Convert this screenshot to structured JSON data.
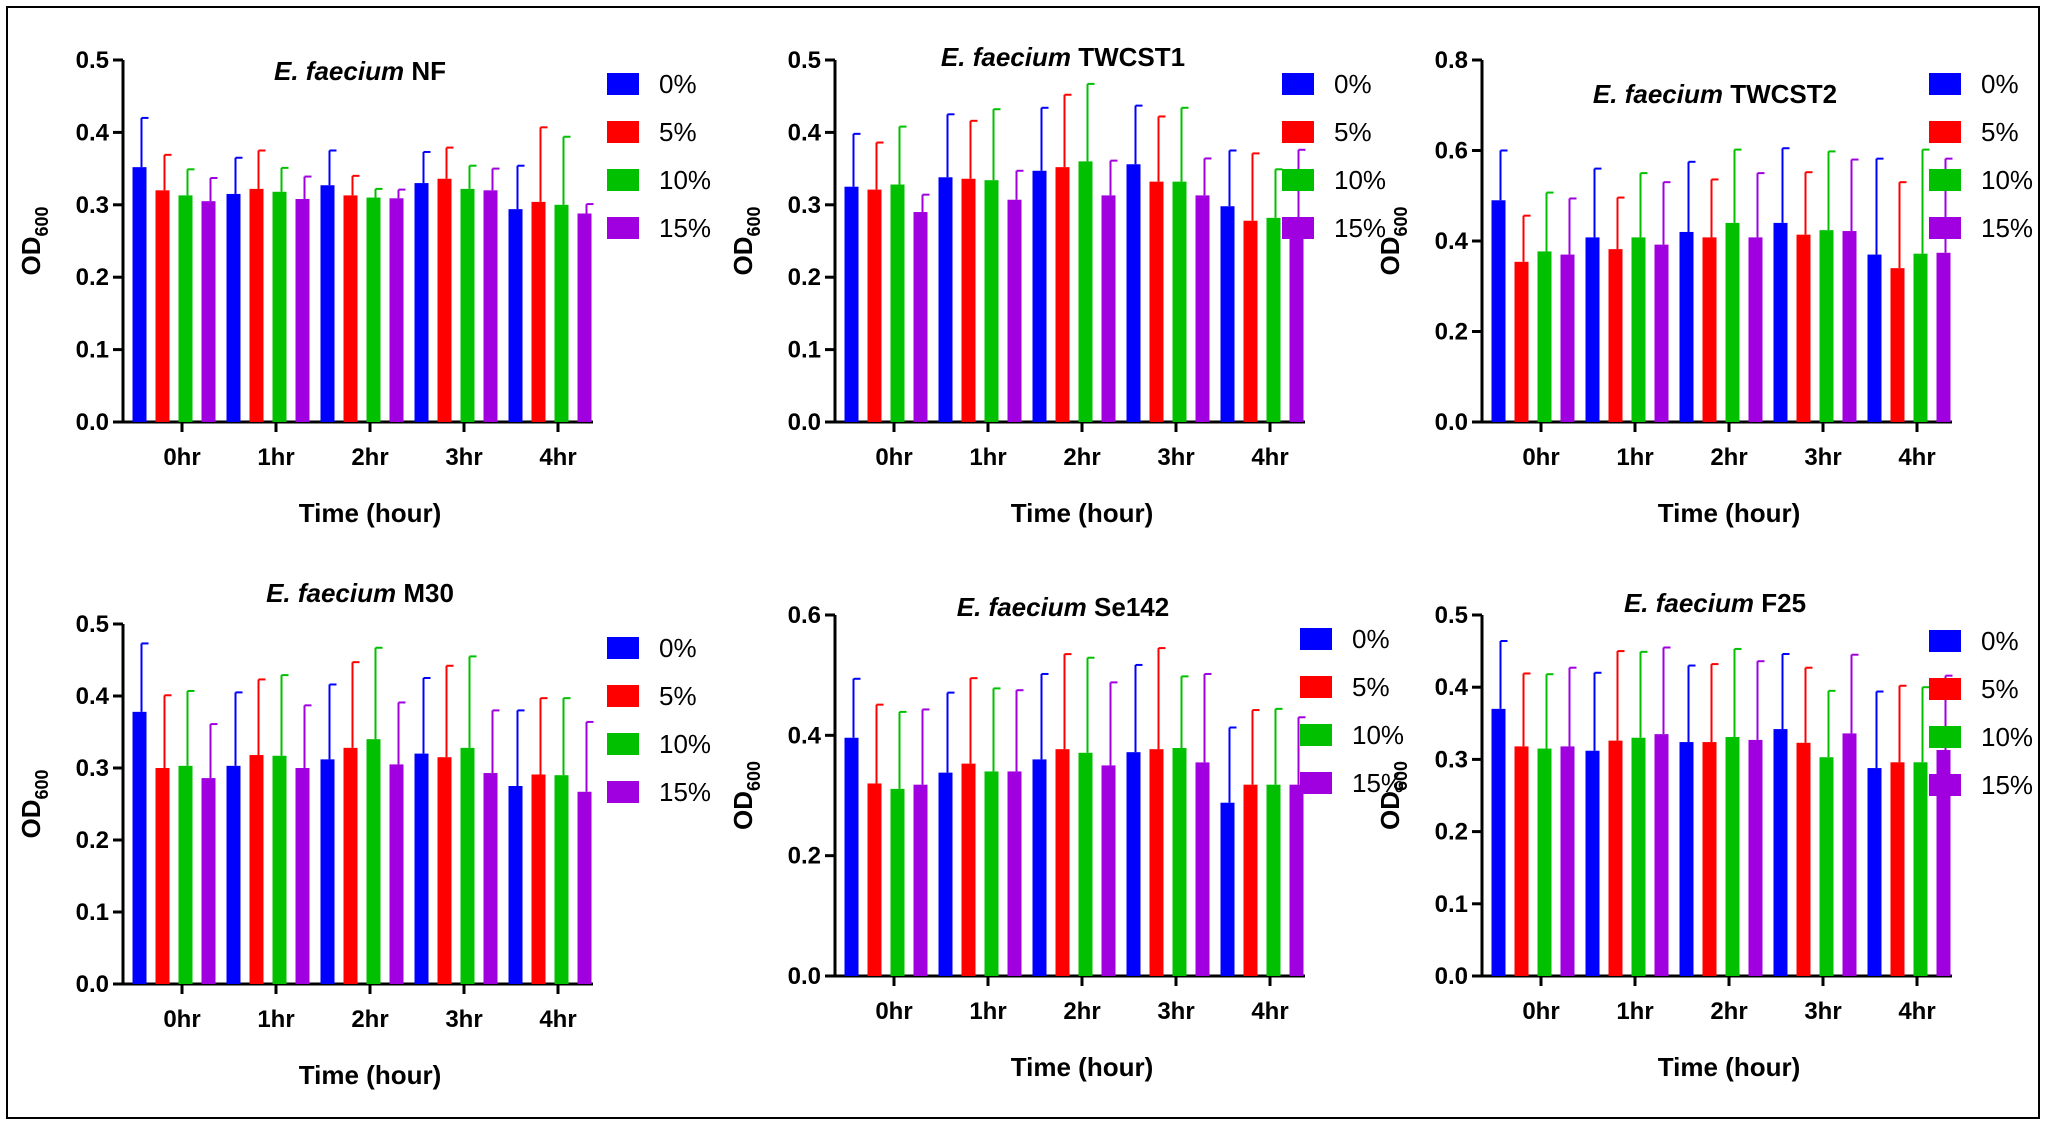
{
  "chart_data": [
    {
      "type": "bar",
      "title_italic": "E. faecium",
      "title_strain": "NF",
      "xlabel": "Time (hour)",
      "ylabel_main": "OD",
      "ylabel_sub": "600",
      "ylim": [
        0,
        0.5
      ],
      "yticks": [
        "0.0",
        "0.1",
        "0.2",
        "0.3",
        "0.4",
        "0.5"
      ],
      "categories": [
        "0hr",
        "1hr",
        "2hr",
        "3hr",
        "4hr"
      ],
      "series": [
        {
          "name": "0%",
          "color": "#0000ff",
          "values": [
            0.352,
            0.315,
            0.327,
            0.33,
            0.294
          ],
          "errors": [
            0.068,
            0.05,
            0.048,
            0.043,
            0.06
          ]
        },
        {
          "name": "5%",
          "color": "#ff0000",
          "values": [
            0.32,
            0.322,
            0.313,
            0.336,
            0.304
          ],
          "errors": [
            0.049,
            0.053,
            0.027,
            0.043,
            0.103
          ]
        },
        {
          "name": "10%",
          "color": "#00c000",
          "values": [
            0.313,
            0.318,
            0.31,
            0.322,
            0.3
          ],
          "errors": [
            0.036,
            0.033,
            0.012,
            0.032,
            0.094
          ]
        },
        {
          "name": "15%",
          "color": "#a000e0",
          "values": [
            0.305,
            0.308,
            0.309,
            0.32,
            0.288
          ],
          "errors": [
            0.032,
            0.031,
            0.012,
            0.03,
            0.013
          ]
        }
      ]
    },
    {
      "type": "bar",
      "title_italic": "E. faecium",
      "title_strain": "TWCST1",
      "xlabel": "Time (hour)",
      "ylabel_main": "OD",
      "ylabel_sub": "600",
      "ylim": [
        0,
        0.5
      ],
      "yticks": [
        "0.0",
        "0.1",
        "0.2",
        "0.3",
        "0.4",
        "0.5"
      ],
      "categories": [
        "0hr",
        "1hr",
        "2hr",
        "3hr",
        "4hr"
      ],
      "series": [
        {
          "name": "0%",
          "color": "#0000ff",
          "values": [
            0.325,
            0.338,
            0.347,
            0.356,
            0.298
          ],
          "errors": [
            0.073,
            0.087,
            0.087,
            0.081,
            0.077
          ]
        },
        {
          "name": "5%",
          "color": "#ff0000",
          "values": [
            0.321,
            0.336,
            0.352,
            0.332,
            0.278
          ],
          "errors": [
            0.065,
            0.08,
            0.1,
            0.09,
            0.093
          ]
        },
        {
          "name": "10%",
          "color": "#00c000",
          "values": [
            0.328,
            0.334,
            0.36,
            0.332,
            0.282
          ],
          "errors": [
            0.08,
            0.098,
            0.107,
            0.102,
            0.067
          ]
        },
        {
          "name": "15%",
          "color": "#a000e0",
          "values": [
            0.29,
            0.307,
            0.313,
            0.313,
            0.278
          ],
          "errors": [
            0.024,
            0.04,
            0.048,
            0.051,
            0.098
          ]
        }
      ]
    },
    {
      "type": "bar",
      "title_italic": "E. faecium",
      "title_strain": "TWCST2",
      "xlabel": "Time (hour)",
      "ylabel_main": "OD",
      "ylabel_sub": "600",
      "ylim": [
        0,
        0.8
      ],
      "yticks": [
        "0.0",
        "0.2",
        "0.4",
        "0.6",
        "0.8"
      ],
      "categories": [
        "0hr",
        "1hr",
        "2hr",
        "3hr",
        "4hr"
      ],
      "series": [
        {
          "name": "0%",
          "color": "#0000ff",
          "values": [
            0.49,
            0.408,
            0.42,
            0.44,
            0.37
          ],
          "errors": [
            0.11,
            0.152,
            0.155,
            0.165,
            0.212
          ]
        },
        {
          "name": "5%",
          "color": "#ff0000",
          "values": [
            0.354,
            0.382,
            0.408,
            0.414,
            0.34
          ],
          "errors": [
            0.102,
            0.114,
            0.128,
            0.138,
            0.19
          ]
        },
        {
          "name": "10%",
          "color": "#00c000",
          "values": [
            0.377,
            0.408,
            0.44,
            0.424,
            0.372
          ],
          "errors": [
            0.13,
            0.142,
            0.162,
            0.174,
            0.23
          ]
        },
        {
          "name": "15%",
          "color": "#a000e0",
          "values": [
            0.37,
            0.392,
            0.408,
            0.422,
            0.374
          ],
          "errors": [
            0.124,
            0.138,
            0.142,
            0.158,
            0.208
          ]
        }
      ]
    },
    {
      "type": "bar",
      "title_italic": "E. faecium",
      "title_strain": "M30",
      "xlabel": "Time (hour)",
      "ylabel_main": "OD",
      "ylabel_sub": "600",
      "ylim": [
        0,
        0.5
      ],
      "yticks": [
        "0.0",
        "0.1",
        "0.2",
        "0.3",
        "0.4",
        "0.5"
      ],
      "categories": [
        "0hr",
        "1hr",
        "2hr",
        "3hr",
        "4hr"
      ],
      "series": [
        {
          "name": "0%",
          "color": "#0000ff",
          "values": [
            0.378,
            0.303,
            0.312,
            0.32,
            0.275
          ],
          "errors": [
            0.095,
            0.102,
            0.104,
            0.105,
            0.105
          ]
        },
        {
          "name": "5%",
          "color": "#ff0000",
          "values": [
            0.3,
            0.318,
            0.328,
            0.315,
            0.291
          ],
          "errors": [
            0.101,
            0.105,
            0.119,
            0.127,
            0.106
          ]
        },
        {
          "name": "10%",
          "color": "#00c000",
          "values": [
            0.303,
            0.317,
            0.34,
            0.328,
            0.29
          ],
          "errors": [
            0.104,
            0.112,
            0.127,
            0.127,
            0.107
          ]
        },
        {
          "name": "15%",
          "color": "#a000e0",
          "values": [
            0.286,
            0.3,
            0.305,
            0.293,
            0.267
          ],
          "errors": [
            0.075,
            0.087,
            0.086,
            0.087,
            0.097
          ]
        }
      ]
    },
    {
      "type": "bar",
      "title_italic": "E. faecium",
      "title_strain": "Se142",
      "xlabel": "Time (hour)",
      "ylabel_main": "OD",
      "ylabel_sub": "600",
      "ylim": [
        0,
        0.6
      ],
      "yticks": [
        "0.0",
        "0.2",
        "0.4",
        "0.6"
      ],
      "categories": [
        "0hr",
        "1hr",
        "2hr",
        "3hr",
        "4hr"
      ],
      "series": [
        {
          "name": "0%",
          "color": "#0000ff",
          "values": [
            0.396,
            0.338,
            0.36,
            0.372,
            0.288
          ],
          "errors": [
            0.098,
            0.133,
            0.142,
            0.145,
            0.125
          ]
        },
        {
          "name": "5%",
          "color": "#ff0000",
          "values": [
            0.32,
            0.353,
            0.377,
            0.377,
            0.318
          ],
          "errors": [
            0.131,
            0.142,
            0.158,
            0.168,
            0.124
          ]
        },
        {
          "name": "10%",
          "color": "#00c000",
          "values": [
            0.311,
            0.34,
            0.371,
            0.379,
            0.318
          ],
          "errors": [
            0.128,
            0.138,
            0.158,
            0.119,
            0.126
          ]
        },
        {
          "name": "15%",
          "color": "#a000e0",
          "values": [
            0.318,
            0.34,
            0.35,
            0.355,
            0.318
          ],
          "errors": [
            0.125,
            0.135,
            0.138,
            0.147,
            0.112
          ]
        }
      ]
    },
    {
      "type": "bar",
      "title_italic": "E. faecium",
      "title_strain": "F25",
      "xlabel": "Time (hour)",
      "ylabel_main": "OD",
      "ylabel_sub": "600",
      "ylim": [
        0,
        0.5
      ],
      "yticks": [
        "0.0",
        "0.1",
        "0.2",
        "0.3",
        "0.4",
        "0.5"
      ],
      "categories": [
        "0hr",
        "1hr",
        "2hr",
        "3hr",
        "4hr"
      ],
      "series": [
        {
          "name": "0%",
          "color": "#0000ff",
          "values": [
            0.37,
            0.312,
            0.324,
            0.342,
            0.288
          ],
          "errors": [
            0.094,
            0.108,
            0.106,
            0.104,
            0.106
          ]
        },
        {
          "name": "5%",
          "color": "#ff0000",
          "values": [
            0.318,
            0.326,
            0.324,
            0.323,
            0.296
          ],
          "errors": [
            0.101,
            0.124,
            0.108,
            0.104,
            0.106
          ]
        },
        {
          "name": "10%",
          "color": "#00c000",
          "values": [
            0.315,
            0.33,
            0.331,
            0.303,
            0.296
          ],
          "errors": [
            0.103,
            0.119,
            0.122,
            0.092,
            0.104
          ]
        },
        {
          "name": "15%",
          "color": "#a000e0",
          "values": [
            0.318,
            0.335,
            0.327,
            0.336,
            0.313
          ],
          "errors": [
            0.109,
            0.12,
            0.109,
            0.109,
            0.103
          ]
        }
      ]
    }
  ]
}
